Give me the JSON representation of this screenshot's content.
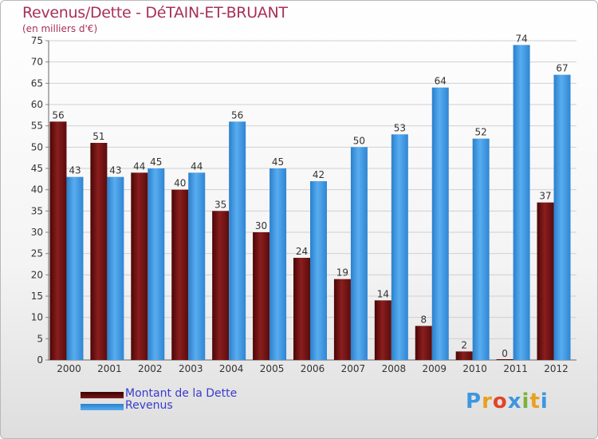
{
  "header": {
    "title": "Revenus/Dette - DéTAIN-ET-BRUANT",
    "subtitle": "(en milliers d'€)"
  },
  "colors": {
    "title": "#a8305a",
    "debt": "#6b0f0f",
    "revenue": "#3d97df",
    "legend_text": "#3a3ad0"
  },
  "chart_data": {
    "type": "bar",
    "title": "Revenus/Dette - DéTAIN-ET-BRUANT",
    "subtitle": "(en milliers d'€)",
    "xlabel": "",
    "ylabel": "",
    "ylim": [
      0,
      75
    ],
    "yticks": [
      0,
      5,
      10,
      15,
      20,
      25,
      30,
      35,
      40,
      45,
      50,
      55,
      60,
      65,
      70,
      75
    ],
    "grid": true,
    "legend_position": "bottom-left",
    "categories": [
      "2000",
      "2001",
      "2002",
      "2003",
      "2004",
      "2005",
      "2006",
      "2007",
      "2008",
      "2009",
      "2010",
      "2011",
      "2012"
    ],
    "series": [
      {
        "name": "Montant de la Dette",
        "values": [
          56,
          51,
          44,
          40,
          35,
          30,
          24,
          19,
          14,
          8,
          2,
          0,
          37
        ]
      },
      {
        "name": "Revenus",
        "values": [
          43,
          43,
          45,
          44,
          56,
          45,
          42,
          50,
          53,
          64,
          52,
          74,
          67
        ]
      }
    ]
  },
  "logo": {
    "letters": [
      "P",
      "r",
      "o",
      "x",
      "i",
      "t",
      "i"
    ],
    "letter_colors": [
      "#3d97df",
      "#e8a020",
      "#e0452a",
      "#3d97df",
      "#7bb33a",
      "#e8a020",
      "#3d97df"
    ]
  }
}
